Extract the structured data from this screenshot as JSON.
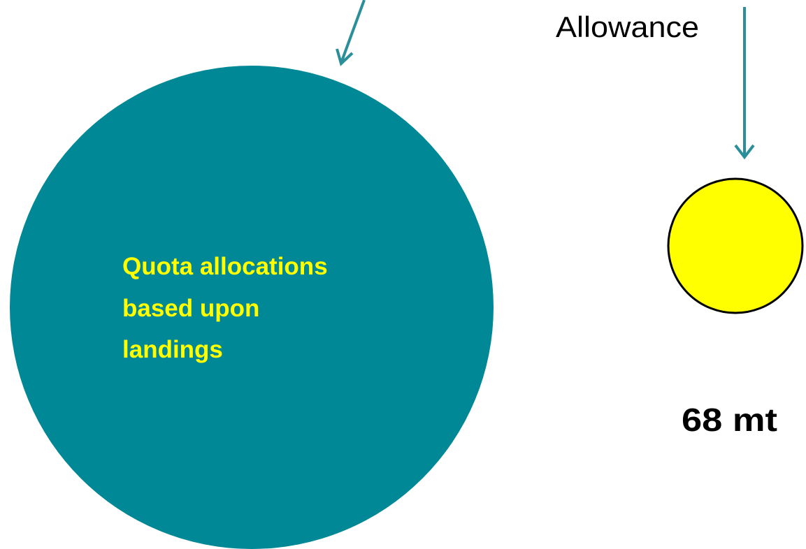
{
  "big_circle": {
    "label_lines": [
      "Quota allocations",
      "based upon",
      "landings"
    ]
  },
  "small_circle": {
    "caption": "Allowance",
    "amount": "68 mt"
  }
}
